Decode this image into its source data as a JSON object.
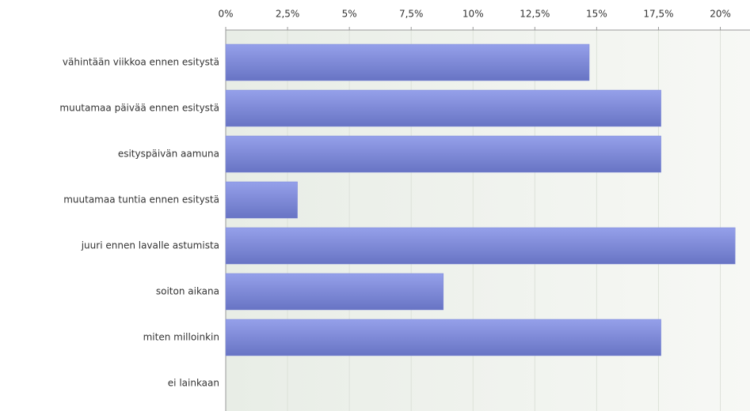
{
  "chart_data": {
    "type": "bar",
    "orientation": "horizontal",
    "categories": [
      "vähintään viikkoa ennen esitystä",
      "muutamaa päivää ennen esitystä",
      "esityspäivän aamuna",
      "muutamaa tuntia ennen esitystä",
      "juuri ennen lavalle astumista",
      "soiton aikana",
      "miten milloinkin",
      "ei lainkaan"
    ],
    "values": [
      14.7,
      17.6,
      17.6,
      2.9,
      20.6,
      8.8,
      17.6,
      0
    ],
    "color": "#7e8ad8",
    "xlim": [
      0,
      21.2
    ],
    "xticks": [
      {
        "value": 0,
        "label": "0%"
      },
      {
        "value": 2.5,
        "label": "2,5%"
      },
      {
        "value": 5,
        "label": "5%"
      },
      {
        "value": 7.5,
        "label": "7,5%"
      },
      {
        "value": 10,
        "label": "10%"
      },
      {
        "value": 12.5,
        "label": "12,5%"
      },
      {
        "value": 15,
        "label": "15%"
      },
      {
        "value": 17.5,
        "label": "17,5%"
      },
      {
        "value": 20,
        "label": "20%"
      }
    ],
    "grid": true
  }
}
